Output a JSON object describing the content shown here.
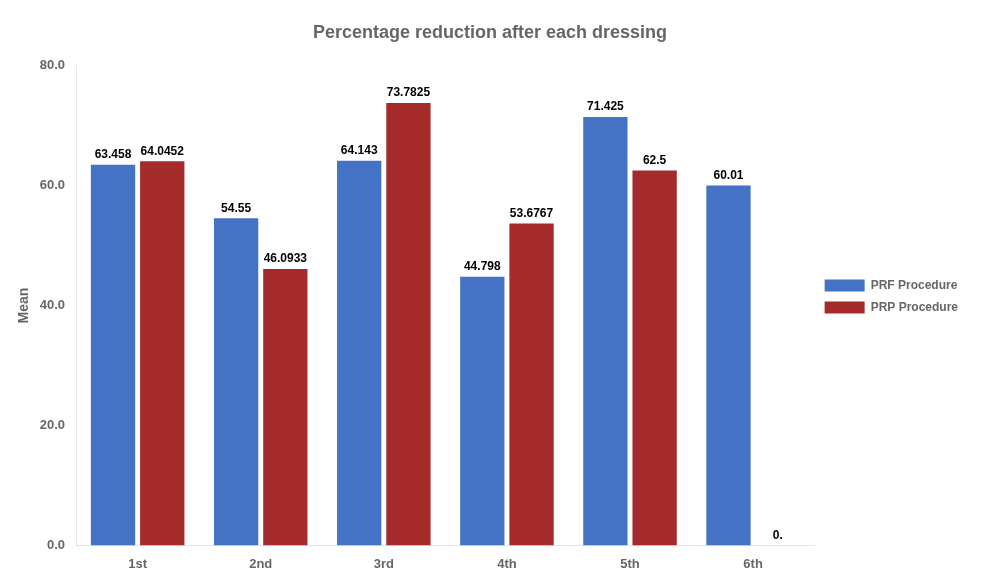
{
  "chart_data": {
    "type": "bar",
    "title": "Percentage reduction after each dressing",
    "categories": [
      "1st",
      "2nd",
      "3rd",
      "4th",
      "5th",
      "6th"
    ],
    "series": [
      {
        "name": "PRF Procedure",
        "color": "#4472C4",
        "values": [
          63.458,
          54.55,
          64.143,
          44.798,
          71.425,
          60.01
        ]
      },
      {
        "name": "PRP Procedure",
        "color": "#A52A2A",
        "values": [
          64.0452,
          46.0933,
          73.7825,
          53.6767,
          62.5,
          0.0
        ],
        "value_labels": [
          "64.0452",
          "46.0933",
          "73.7825",
          "53.6767",
          "62.5",
          "0."
        ]
      }
    ],
    "ylabel": "Mean",
    "ylim": [
      0.0,
      80.0
    ],
    "yticks": [
      {
        "value": 0,
        "label": "0.0"
      },
      {
        "value": 20,
        "label": "20.0"
      },
      {
        "value": 40,
        "label": "40.0"
      },
      {
        "value": 60,
        "label": "60.0"
      },
      {
        "value": 80,
        "label": "80.0"
      }
    ],
    "grid": false,
    "legend": "right",
    "data_labels": true
  }
}
